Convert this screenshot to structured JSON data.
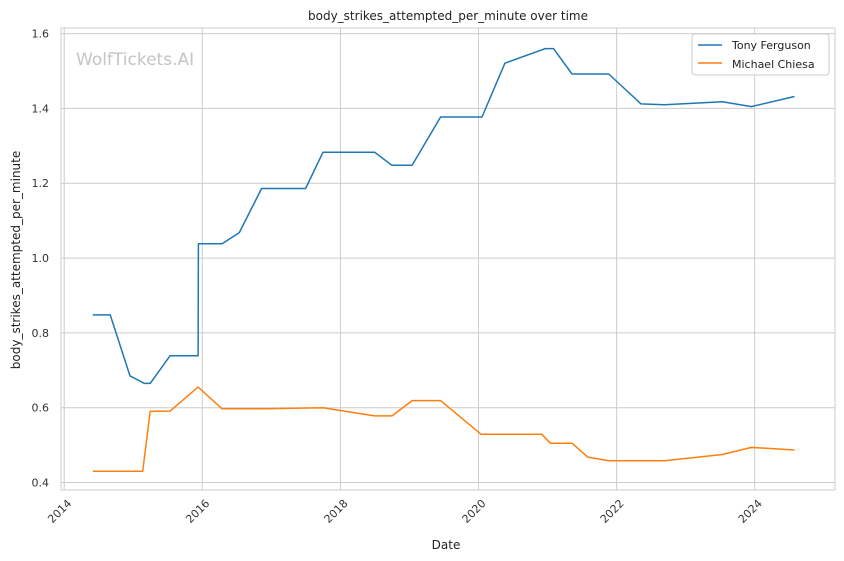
{
  "chart_data": {
    "type": "line",
    "title": "body_strikes_attempted_per_minute over time",
    "xlabel": "Date",
    "ylabel": "body_strikes_attempted_per_minute",
    "watermark": "WolfTickets.AI",
    "xlim": [
      "2013-12-15",
      "2025-03-01"
    ],
    "ylim": [
      0.38,
      1.615
    ],
    "x_ticks": [
      "2014",
      "2016",
      "2018",
      "2020",
      "2022",
      "2024"
    ],
    "y_ticks": [
      "0.4",
      "0.6",
      "0.8",
      "1.0",
      "1.2",
      "1.4",
      "1.6"
    ],
    "grid": true,
    "legend_position": "top-right",
    "series": [
      {
        "name": "Tony Ferguson",
        "color": "#1f77b4",
        "points": [
          [
            "2014-06-01",
            0.848
          ],
          [
            "2014-09-01",
            0.848
          ],
          [
            "2014-12-15",
            0.685
          ],
          [
            "2015-03-01",
            0.665
          ],
          [
            "2015-04-01",
            0.665
          ],
          [
            "2015-07-15",
            0.739
          ],
          [
            "2015-12-10",
            0.739
          ],
          [
            "2015-12-12",
            1.038
          ],
          [
            "2016-04-15",
            1.038
          ],
          [
            "2016-07-15",
            1.068
          ],
          [
            "2016-11-10",
            1.186
          ],
          [
            "2017-07-01",
            1.186
          ],
          [
            "2017-10-01",
            1.283
          ],
          [
            "2018-07-01",
            1.283
          ],
          [
            "2018-10-01",
            1.248
          ],
          [
            "2019-01-15",
            1.248
          ],
          [
            "2019-06-15",
            1.377
          ],
          [
            "2020-01-20",
            1.377
          ],
          [
            "2020-05-20",
            1.521
          ],
          [
            "2020-12-20",
            1.56
          ],
          [
            "2021-02-01",
            1.56
          ],
          [
            "2021-05-10",
            1.492
          ],
          [
            "2021-11-20",
            1.492
          ],
          [
            "2022-05-10",
            1.412
          ],
          [
            "2022-09-10",
            1.41
          ],
          [
            "2023-07-15",
            1.418
          ],
          [
            "2023-12-15",
            1.405
          ],
          [
            "2024-07-30",
            1.432
          ]
        ]
      },
      {
        "name": "Michael Chiesa",
        "color": "#ff7f0e",
        "points": [
          [
            "2014-06-01",
            0.43
          ],
          [
            "2015-02-20",
            0.43
          ],
          [
            "2015-04-01",
            0.59
          ],
          [
            "2015-07-15",
            0.591
          ],
          [
            "2015-12-10",
            0.655
          ],
          [
            "2016-04-15",
            0.597
          ],
          [
            "2016-12-01",
            0.597
          ],
          [
            "2017-10-01",
            0.6
          ],
          [
            "2018-07-01",
            0.578
          ],
          [
            "2018-10-01",
            0.578
          ],
          [
            "2019-01-15",
            0.619
          ],
          [
            "2019-06-15",
            0.619
          ],
          [
            "2020-01-15",
            0.529
          ],
          [
            "2020-12-01",
            0.529
          ],
          [
            "2021-01-15",
            0.505
          ],
          [
            "2021-05-10",
            0.505
          ],
          [
            "2021-08-01",
            0.468
          ],
          [
            "2021-11-20",
            0.458
          ],
          [
            "2022-09-10",
            0.458
          ],
          [
            "2023-07-15",
            0.475
          ],
          [
            "2023-12-15",
            0.494
          ],
          [
            "2024-07-30",
            0.487
          ]
        ]
      }
    ]
  }
}
